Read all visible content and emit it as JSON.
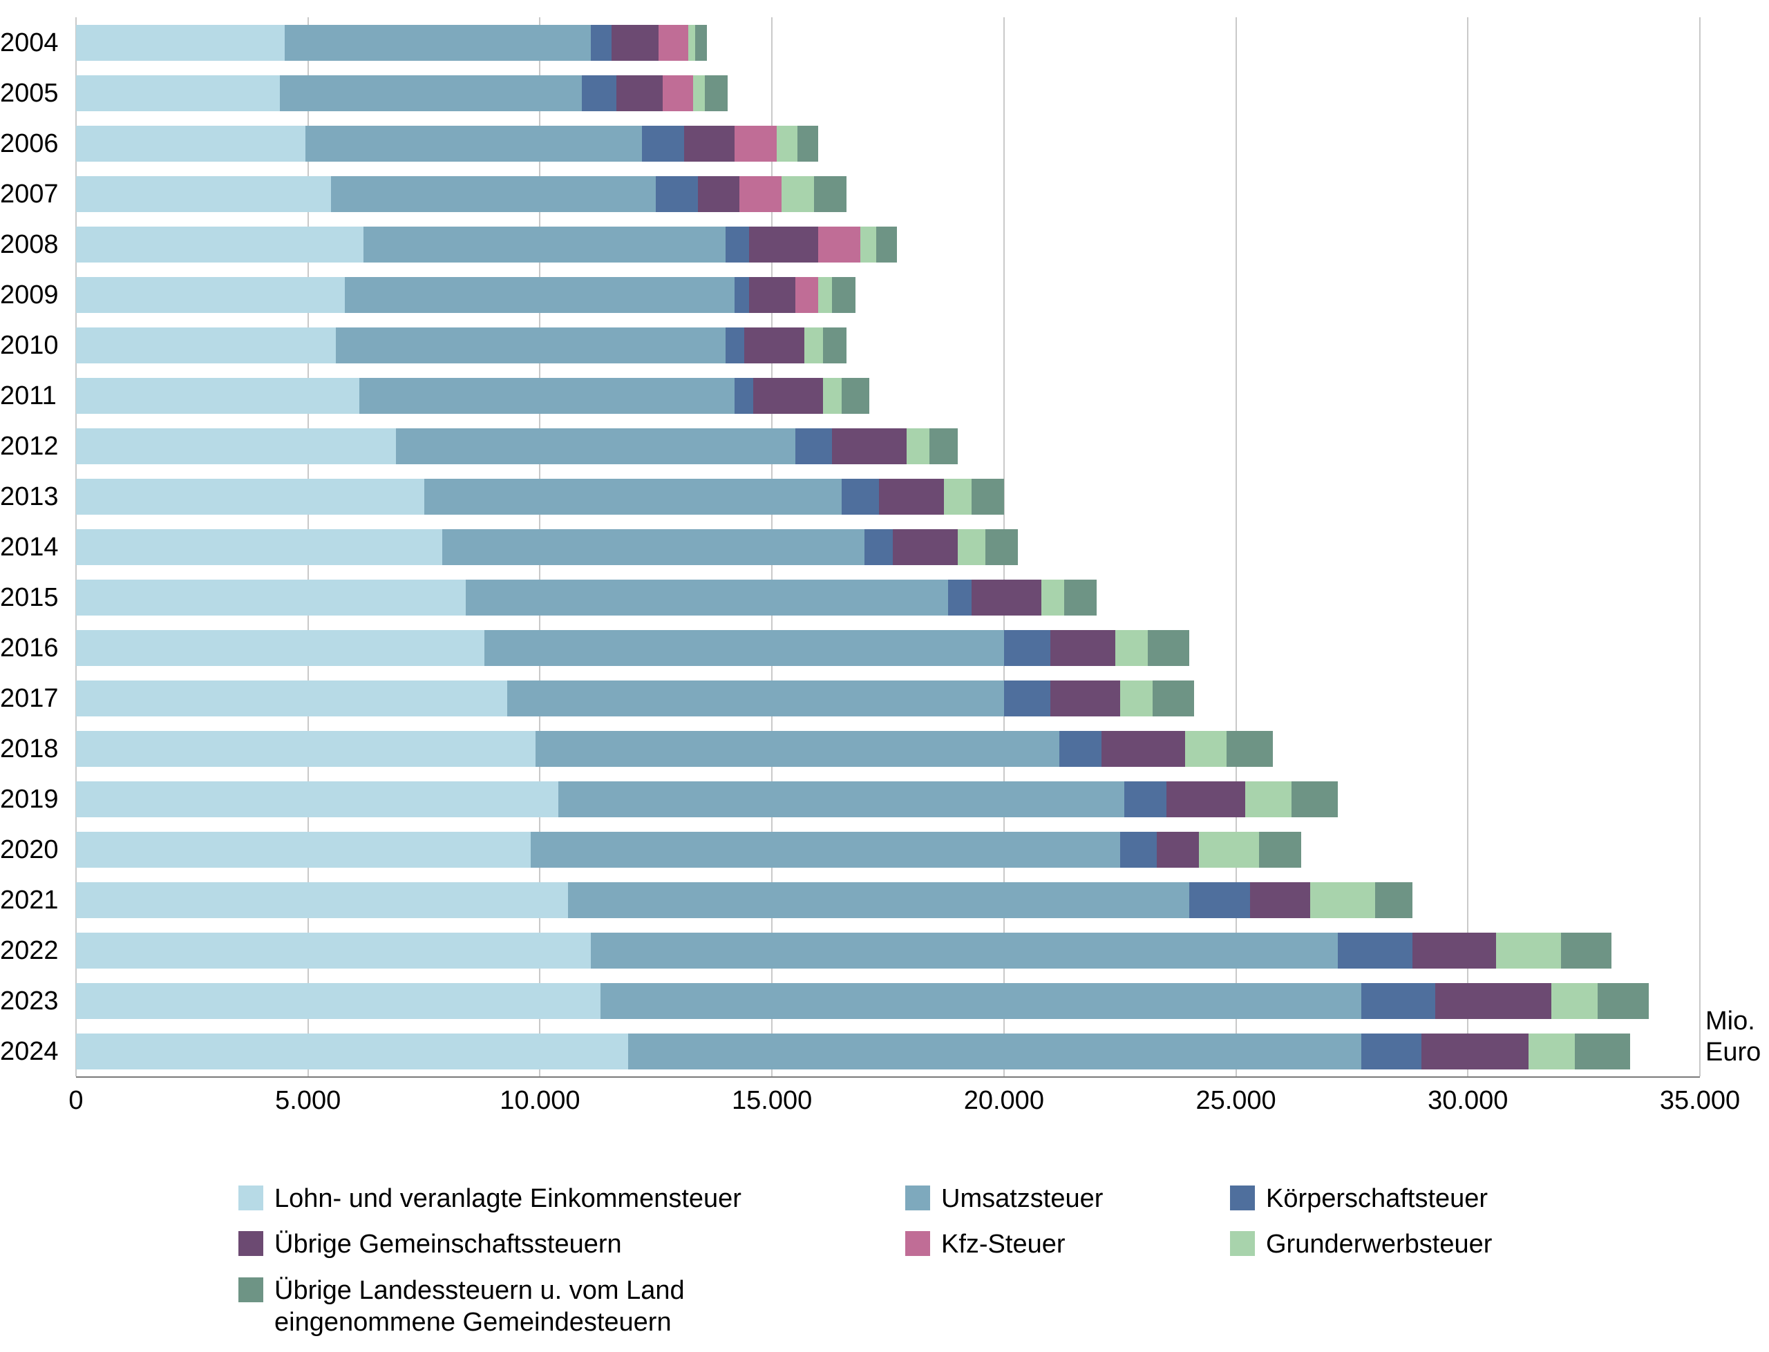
{
  "axis_unit": {
    "line1": "Mio.",
    "line2": "Euro"
  },
  "chart_data": {
    "type": "bar",
    "orientation": "horizontal",
    "stacked": true,
    "grid": true,
    "legend_position": "bottom",
    "categories": [
      "2004",
      "2005",
      "2006",
      "2007",
      "2008",
      "2009",
      "2010",
      "2011",
      "2012",
      "2013",
      "2014",
      "2015",
      "2016",
      "2017",
      "2018",
      "2019",
      "2020",
      "2021",
      "2022",
      "2023",
      "2024"
    ],
    "x_axis": {
      "label": "Mio. Euro",
      "min": 0,
      "max": 35000,
      "tick_interval": 5000,
      "tick_labels": [
        "0",
        "5.000",
        "10.000",
        "15.000",
        "20.000",
        "25.000",
        "30.000",
        "35.000"
      ]
    },
    "series": [
      {
        "name": "Lohn- und veranlagte Einkommensteuer",
        "color": "#b7dae6",
        "values": [
          4500,
          4400,
          4950,
          5500,
          6200,
          5800,
          5600,
          6100,
          6900,
          7500,
          7900,
          8400,
          8800,
          9300,
          9900,
          10400,
          9800,
          10600,
          11100,
          11300,
          11900
        ]
      },
      {
        "name": "Umsatzsteuer",
        "color": "#7ea9bd",
        "values": [
          6600,
          6500,
          7250,
          7000,
          7800,
          8400,
          8400,
          8100,
          8600,
          9000,
          9100,
          10400,
          11200,
          10700,
          11300,
          12200,
          12700,
          13400,
          16100,
          16400,
          15800
        ]
      },
      {
        "name": "Körperschaftsteuer",
        "color": "#4f6f9d",
        "values": [
          450,
          750,
          900,
          900,
          500,
          300,
          400,
          400,
          800,
          800,
          600,
          500,
          1000,
          1000,
          900,
          900,
          800,
          1300,
          1600,
          1600,
          1300
        ]
      },
      {
        "name": "Übrige Gemeinschaftssteuern",
        "color": "#6c4a72",
        "values": [
          1000,
          1000,
          1100,
          900,
          1500,
          1000,
          1300,
          1500,
          1600,
          1400,
          1400,
          1500,
          1400,
          1500,
          1800,
          1700,
          900,
          1300,
          1800,
          2500,
          2300
        ]
      },
      {
        "name": "Kfz-Steuer",
        "color": "#c06d96",
        "values": [
          650,
          650,
          900,
          900,
          900,
          500,
          0,
          0,
          0,
          0,
          0,
          0,
          0,
          0,
          0,
          0,
          0,
          0,
          0,
          0,
          0
        ]
      },
      {
        "name": "Grunderwerbsteuer",
        "color": "#a8d3ac",
        "values": [
          150,
          250,
          450,
          700,
          350,
          300,
          400,
          400,
          500,
          600,
          600,
          500,
          700,
          700,
          900,
          1000,
          1300,
          1400,
          1400,
          1000,
          1000
        ]
      },
      {
        "name": "Übrige Landessteuern u. vom Land eingenommene Gemeindesteuern",
        "legend_label": "Übrige Landessteuern u. vom Land\neingenommene Gemeindesteuern",
        "color": "#6e9485",
        "values": [
          250,
          500,
          450,
          700,
          450,
          500,
          500,
          600,
          600,
          700,
          700,
          700,
          900,
          900,
          1000,
          1000,
          900,
          800,
          1100,
          1100,
          1200
        ]
      }
    ]
  }
}
